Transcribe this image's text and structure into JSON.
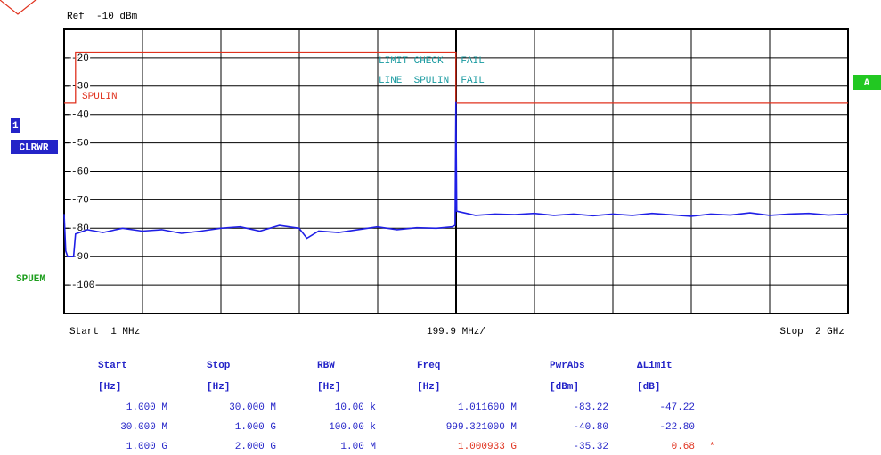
{
  "chart_data": {
    "type": "line",
    "ref_label": "Ref  -10 dBm",
    "start_label": "Start  1 MHz",
    "span_label": "199.9 MHz/",
    "stop_label": "Stop  2 GHz",
    "annotations": [
      "LIMIT CHECK   FAIL",
      "LINE  SPULIN  FAIL"
    ],
    "xlim": [
      1,
      2000
    ],
    "ylim": [
      -110,
      -10
    ],
    "xticks": [
      200.9,
      400.8,
      600.7,
      800.6,
      1000.5,
      1200.4,
      1400.3,
      1600.2,
      1800.1
    ],
    "yticks": [
      -20,
      -30,
      -40,
      -50,
      -60,
      -70,
      -80,
      -90,
      -100
    ],
    "grid": true,
    "series": [
      {
        "name": "SPULIN",
        "color": "#e0321e",
        "x": [
          1,
          30,
          30,
          1000,
          1000,
          2000
        ],
        "values": [
          -36,
          -36,
          -18,
          -18,
          -36,
          -36
        ]
      },
      {
        "name": "1",
        "color": "#1f1fe6",
        "x": [
          1,
          5,
          10,
          25,
          30,
          60,
          100,
          150,
          200,
          250,
          300,
          350,
          400,
          450,
          500,
          550,
          600,
          620,
          650,
          700,
          750,
          800,
          850,
          900,
          950,
          990,
          998,
          1000,
          1002,
          1050,
          1100,
          1150,
          1200,
          1250,
          1300,
          1350,
          1400,
          1450,
          1500,
          1550,
          1600,
          1650,
          1700,
          1750,
          1800,
          1850,
          1900,
          1950,
          2000
        ],
        "values": [
          -75,
          -88,
          -90,
          -90,
          -82,
          -80.5,
          -81.5,
          -80,
          -81,
          -80.5,
          -81.8,
          -81,
          -80,
          -79.5,
          -81,
          -79,
          -80,
          -83.5,
          -81,
          -81.5,
          -80.5,
          -79.5,
          -80.5,
          -79.8,
          -80,
          -79.5,
          -79,
          -35.3,
          -74,
          -75.5,
          -75,
          -75.2,
          -74.8,
          -75.5,
          -75,
          -75.6,
          -75,
          -75.5,
          -74.8,
          -75.3,
          -75.8,
          -75,
          -75.4,
          -74.6,
          -75.5,
          -75,
          -74.8,
          -75.4,
          -75
        ]
      }
    ]
  },
  "side": {
    "trace_mode": "CLRWR",
    "mode": "SPUEM",
    "marker": "A"
  },
  "table": {
    "headers": [
      "Start",
      "Stop",
      "RBW",
      "Freq",
      "PwrAbs",
      "ΔLimit"
    ],
    "units": [
      "[Hz]",
      "[Hz]",
      "[Hz]",
      "[Hz]",
      "[dBm]",
      "[dB]"
    ],
    "rows": [
      {
        "cells": [
          "1.000 M",
          "30.000 M",
          "10.00 k",
          "1.011600 M",
          "-83.22",
          "-47.22"
        ]
      },
      {
        "cells": [
          "30.000 M",
          "1.000 G",
          "100.00 k",
          "999.321000 M",
          "-40.80",
          "-22.80"
        ]
      },
      {
        "cells": [
          "1.000 G",
          "2.000 G",
          "1.00 M",
          "1.000933 G",
          "-35.32",
          "0.68"
        ],
        "flag": "*"
      }
    ]
  }
}
